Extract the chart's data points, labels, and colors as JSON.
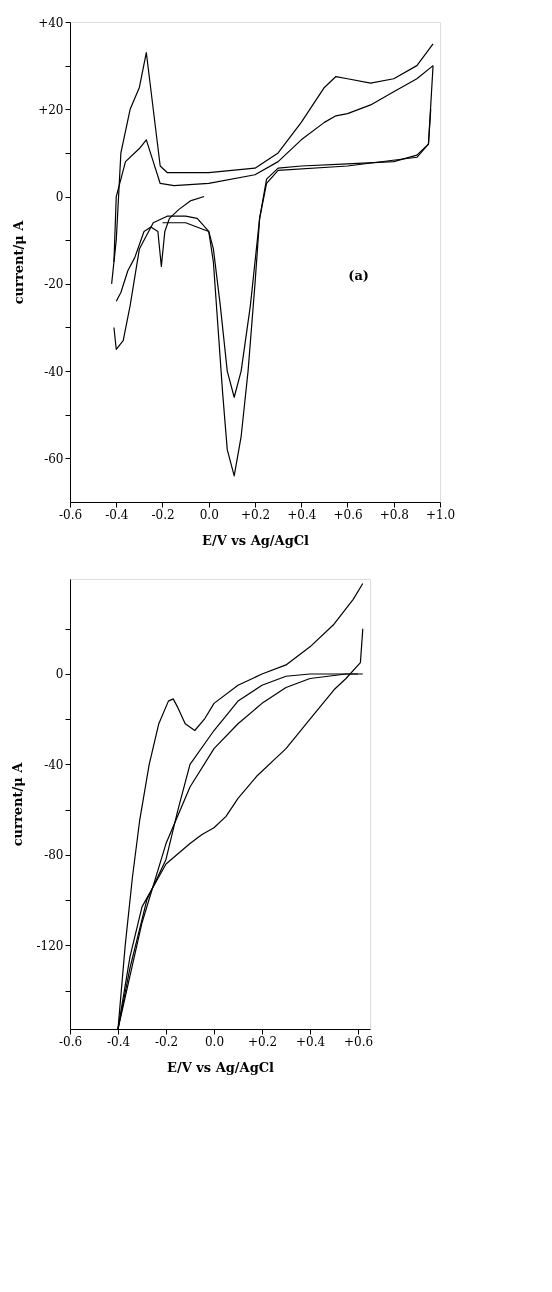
{
  "chart_data": [
    {
      "type": "line",
      "xlabel": "E/V vs Ag/AgCl",
      "ylabel": "current/μ A",
      "annotations": [
        "(a)"
      ],
      "xlim": [
        -0.6,
        1.0
      ],
      "ylim": [
        -70,
        40
      ],
      "xticks": [
        {
          "value": -0.6,
          "label": "-0.6"
        },
        {
          "value": -0.4,
          "label": "-0.4"
        },
        {
          "value": -0.2,
          "label": "-0.2"
        },
        {
          "value": 0,
          "label": "0.0"
        },
        {
          "value": 0.2,
          "label": "+0.2"
        },
        {
          "value": 0.4,
          "label": "+0.4"
        },
        {
          "value": 0.6,
          "label": "+0.6"
        },
        {
          "value": 0.8,
          "label": "+0.8"
        },
        {
          "value": 1.0,
          "label": "+1.0"
        }
      ],
      "yticks": [
        {
          "value": -60,
          "label": "-60"
        },
        {
          "value": -50,
          "label": null
        },
        {
          "value": -40,
          "label": "-40"
        },
        {
          "value": -30,
          "label": null
        },
        {
          "value": -20,
          "label": "-20"
        },
        {
          "value": -10,
          "label": null
        },
        0,
        {
          "value": 10,
          "label": null
        },
        {
          "value": 20,
          "label": "+20"
        },
        {
          "value": 30,
          "label": null
        },
        {
          "value": 40,
          "label": "+40"
        }
      ],
      "grid": false,
      "marker": "none",
      "line_style": "solid",
      "series": [
        {
          "color": "#000000",
          "x": [
            -0.42,
            -0.4,
            -0.38,
            -0.34,
            -0.3,
            -0.27,
            -0.24,
            -0.21,
            -0.18,
            0.0,
            0.2,
            0.3,
            0.4,
            0.5,
            0.55,
            0.6,
            0.7,
            0.8,
            0.9,
            0.97
          ],
          "values": [
            -20,
            -10,
            10,
            20,
            25,
            33,
            20,
            7,
            5.5,
            5.5,
            6.5,
            10,
            17,
            25,
            27.5,
            27,
            26,
            27,
            30,
            35
          ]
        },
        {
          "color": "#000000",
          "x": [
            0.97,
            0.95,
            0.9,
            0.8,
            0.6,
            0.4,
            0.3,
            0.25,
            0.22,
            0.2,
            0.17,
            0.14,
            0.11,
            0.08,
            0.06,
            0.04,
            0.02,
            0.0,
            -0.05,
            -0.1,
            -0.18,
            -0.24,
            -0.3,
            -0.34,
            -0.37,
            -0.4,
            -0.41
          ],
          "values": [
            30,
            12,
            9.5,
            8,
            7.5,
            7,
            6.5,
            4,
            -5,
            -20,
            -40,
            -55,
            -64,
            -58,
            -45,
            -30,
            -15,
            -8,
            -5,
            -4.5,
            -4.5,
            -6,
            -12,
            -25,
            -33,
            -35,
            -30
          ]
        },
        {
          "color": "#000000",
          "x": [
            -0.02,
            -0.08,
            -0.13,
            -0.17,
            -0.19,
            -0.205,
            -0.22,
            -0.25,
            -0.28,
            -0.32,
            -0.35,
            -0.38,
            -0.4
          ],
          "values": [
            0,
            -1,
            -3,
            -5,
            -8,
            -16,
            -8,
            -7,
            -8,
            -14,
            -17,
            -22,
            -24
          ]
        },
        {
          "color": "#000000",
          "x": [
            -0.41,
            -0.4,
            -0.36,
            -0.3,
            -0.27,
            -0.24,
            -0.21,
            -0.15,
            0.0,
            0.2,
            0.3,
            0.4,
            0.5,
            0.55,
            0.6,
            0.7,
            0.8,
            0.9,
            0.97
          ],
          "values": [
            -15,
            0,
            8,
            11,
            13,
            8,
            3,
            2.5,
            3,
            5,
            8,
            13,
            17,
            18.5,
            19,
            21,
            24,
            27,
            30
          ]
        },
        {
          "color": "#000000",
          "x": [
            0.96,
            0.95,
            0.9,
            0.6,
            0.3,
            0.25,
            0.22,
            0.18,
            0.14,
            0.11,
            0.08,
            0.05,
            0.02,
            0.0,
            -0.1,
            -0.2
          ],
          "values": [
            20,
            12,
            9,
            7,
            6,
            3,
            -5,
            -25,
            -40,
            -46,
            -40,
            -25,
            -12,
            -8,
            -6,
            -6
          ]
        }
      ]
    },
    {
      "type": "line",
      "xlabel": "E/V vs Ag/AgCl",
      "ylabel": "current/μ A",
      "xlim": [
        -0.6,
        0.65
      ],
      "ylim": [
        -157,
        42
      ],
      "xticks": [
        {
          "value": -0.6,
          "label": "-0.6"
        },
        {
          "value": -0.4,
          "label": "-0.4"
        },
        {
          "value": -0.2,
          "label": "-0.2"
        },
        {
          "value": 0,
          "label": "0.0"
        },
        {
          "value": 0.2,
          "label": "+0.2"
        },
        {
          "value": 0.4,
          "label": "+0.4"
        },
        {
          "value": 0.6,
          "label": "+0.6"
        }
      ],
      "yticks": [
        {
          "value": -140,
          "label": null
        },
        -120,
        {
          "value": -100,
          "label": null
        },
        -80,
        {
          "value": -60,
          "label": null
        },
        -40,
        {
          "value": -20,
          "label": null
        },
        0,
        {
          "value": 20,
          "label": null
        }
      ],
      "grid": false,
      "marker": "none",
      "line_style": "solid",
      "series": [
        {
          "color": "#000000",
          "x": [
            -0.4,
            -0.37,
            -0.34,
            -0.31,
            -0.27,
            -0.23,
            -0.19,
            -0.17,
            -0.15,
            -0.12,
            -0.08,
            -0.04,
            0.0,
            0.1,
            0.2,
            0.3,
            0.4,
            0.5,
            0.58,
            0.62
          ],
          "values": [
            -157,
            -120,
            -90,
            -65,
            -40,
            -22,
            -12,
            -11,
            -15,
            -22,
            -25,
            -20,
            -13,
            -5,
            0,
            4,
            12,
            22,
            33,
            40
          ]
        },
        {
          "color": "#000000",
          "x": [
            0.62,
            0.61,
            0.55,
            0.5,
            0.4,
            0.3,
            0.25,
            0.18,
            0.1,
            0.05,
            0.0,
            -0.05,
            -0.1,
            -0.2,
            -0.3,
            -0.35,
            -0.4
          ],
          "values": [
            20,
            5,
            -2,
            -7,
            -20,
            -33,
            -38,
            -45,
            -55,
            -63,
            -68,
            -71,
            -75,
            -84,
            -103,
            -125,
            -157
          ]
        },
        {
          "color": "#000000",
          "x": [
            0.62,
            0.55,
            0.4,
            0.3,
            0.2,
            0.1,
            0.0,
            -0.1,
            -0.2,
            -0.3,
            -0.4
          ],
          "values": [
            0,
            0,
            -2,
            -6,
            -13,
            -22,
            -33,
            -50,
            -75,
            -110,
            -157
          ]
        },
        {
          "color": "#000000",
          "x": [
            -0.4,
            -0.35,
            -0.28,
            -0.2,
            -0.15,
            -0.1,
            0.0,
            0.1,
            0.2,
            0.3,
            0.4,
            0.5,
            0.6
          ],
          "values": [
            -157,
            -130,
            -100,
            -82,
            -60,
            -40,
            -25,
            -12,
            -5,
            -1,
            0,
            0,
            0
          ]
        }
      ]
    }
  ]
}
